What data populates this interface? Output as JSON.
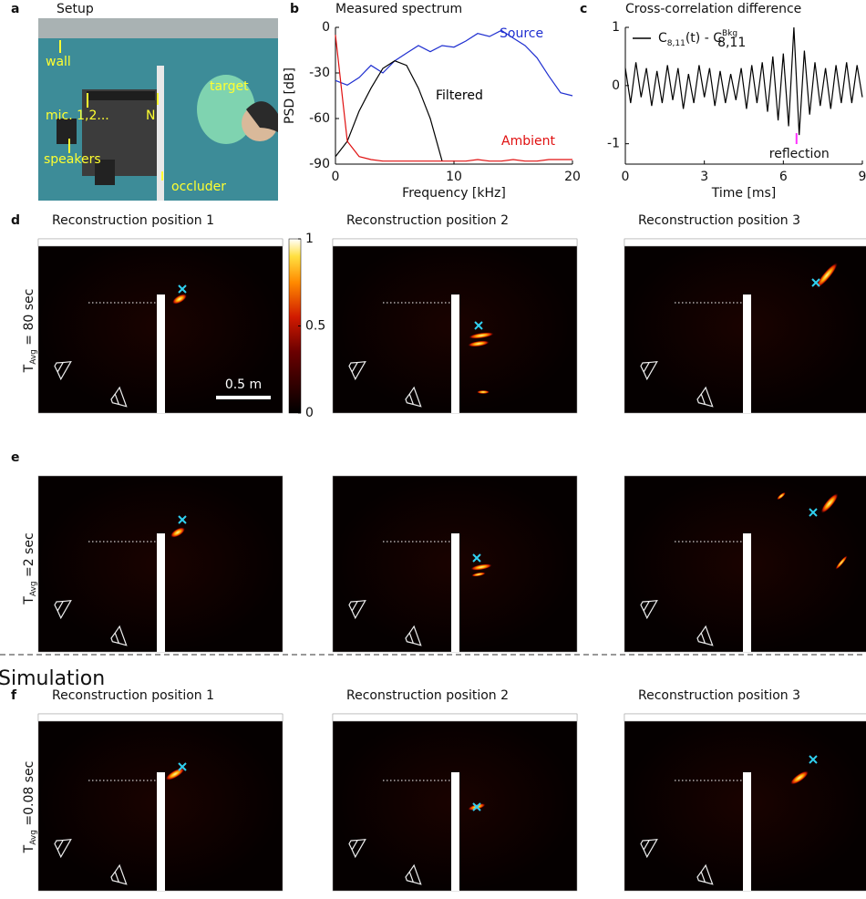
{
  "figure": {
    "panel_a": {
      "letter": "a",
      "title": "Setup",
      "labels": [
        "wall",
        "mic. 1,2...",
        "N",
        "target",
        "speakers",
        "occluder"
      ]
    },
    "rows": [
      {
        "letter": "d",
        "row_label": [
          "T",
          "Avg",
          " = 80 sec"
        ],
        "titles": [
          "Reconstruction position 1",
          "Reconstruction position 2",
          "Reconstruction position 3"
        ]
      },
      {
        "letter": "e",
        "row_label": [
          "T",
          "Avg",
          " =2 sec"
        ]
      },
      {
        "letter": "f",
        "row_label": [
          "T",
          "Avg",
          " =0.08 sec"
        ],
        "titles": [
          "Reconstruction position 1",
          "Reconstruction position 2",
          "Reconstruction position 3"
        ]
      }
    ],
    "simulation_label": "Simulation",
    "scale_bar": "0.5 m",
    "colorbar": {
      "clim": [
        0,
        1
      ],
      "ticks": [
        0,
        0.5,
        1
      ]
    }
  },
  "chart_data": [
    {
      "type": "line",
      "letter": "b",
      "title": "Measured spectrum",
      "xlabel": "Frequency [kHz]",
      "ylabel": "PSD [dB]",
      "xlim": [
        0,
        20
      ],
      "ylim": [
        -90,
        0
      ],
      "xticks": [
        0,
        10,
        20
      ],
      "yticks": [
        0,
        -30,
        -60,
        -90
      ],
      "x": [
        0,
        1,
        2,
        3,
        4,
        5,
        6,
        7,
        8,
        9,
        10,
        11,
        12,
        13,
        14,
        15,
        16,
        17,
        18,
        19,
        20
      ],
      "series": [
        {
          "name": "Source",
          "color": "#1f2fd0",
          "values": [
            -35,
            -38,
            -33,
            -25,
            -30,
            -22,
            -17,
            -12,
            -16,
            -12,
            -13,
            -9,
            -4,
            -6,
            -2,
            -7,
            -12,
            -20,
            -32,
            -43,
            -45
          ]
        },
        {
          "name": "Filtered",
          "color": "#000000",
          "values": [
            -85,
            -75,
            -55,
            -40,
            -27,
            -22,
            -25,
            -40,
            -60,
            -88,
            null,
            null,
            null,
            null,
            null,
            null,
            null,
            null,
            null,
            null,
            null
          ]
        },
        {
          "name": "Ambient",
          "color": "#e01010",
          "values": [
            -5,
            -75,
            -85,
            -87,
            -88,
            -88,
            -88,
            -88,
            -88,
            -88,
            -88,
            -88,
            -87,
            -88,
            -88,
            -87,
            -88,
            -88,
            -87,
            -87,
            -87
          ]
        }
      ]
    },
    {
      "type": "line",
      "letter": "c",
      "title": "Cross-correlation difference",
      "xlabel": "Time [ms]",
      "xlim": [
        0,
        9
      ],
      "ylim": [
        -1.35,
        1
      ],
      "xticks": [
        0,
        3,
        6,
        9
      ],
      "yticks": [
        -1,
        0,
        1
      ],
      "annotation": "reflection",
      "x": [
        0,
        0.2,
        0.4,
        0.6,
        0.8,
        1,
        1.2,
        1.4,
        1.6,
        1.8,
        2,
        2.2,
        2.4,
        2.6,
        2.8,
        3,
        3.2,
        3.4,
        3.6,
        3.8,
        4,
        4.2,
        4.4,
        4.6,
        4.8,
        5,
        5.2,
        5.4,
        5.6,
        5.8,
        6,
        6.2,
        6.4,
        6.6,
        6.8,
        7,
        7.2,
        7.4,
        7.6,
        7.8,
        8,
        8.2,
        8.4,
        8.6,
        8.8,
        9
      ],
      "series": [
        {
          "name_parts": [
            "C",
            "8,11",
            "(t) - C",
            "Bkg",
            "8,11"
          ],
          "color": "#000000",
          "values": [
            0.3,
            -0.3,
            0.4,
            -0.2,
            0.3,
            -0.35,
            0.25,
            -0.3,
            0.35,
            -0.25,
            0.3,
            -0.4,
            0.2,
            -0.3,
            0.35,
            -0.2,
            0.3,
            -0.35,
            0.25,
            -0.3,
            0.2,
            -0.25,
            0.3,
            -0.4,
            0.35,
            -0.3,
            0.4,
            -0.45,
            0.5,
            -0.6,
            0.55,
            -0.7,
            1,
            -0.85,
            0.6,
            -0.5,
            0.4,
            -0.35,
            0.3,
            -0.4,
            0.35,
            -0.3,
            0.4,
            -0.3,
            0.35,
            -0.2
          ]
        }
      ]
    }
  ]
}
